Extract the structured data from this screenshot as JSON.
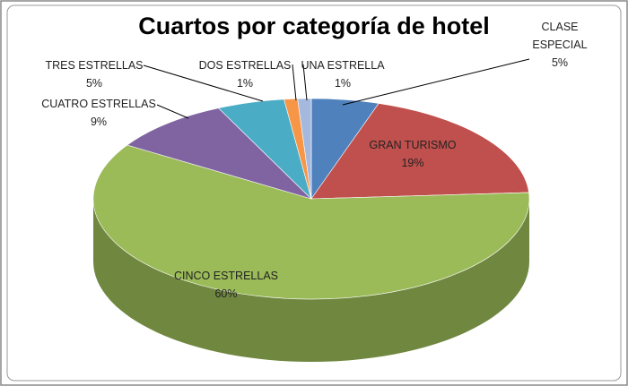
{
  "chart_data": {
    "type": "pie3d",
    "title": "Cuartos por categoría de hotel",
    "categories": [
      "CLASE ESPECIAL",
      "GRAN TURISMO",
      "CINCO ESTRELLAS",
      "CUATRO ESTRELLAS",
      "TRES ESTRELLAS",
      "DOS ESTRELLAS",
      "UNA ESTRELLA"
    ],
    "values": [
      5,
      19,
      60,
      9,
      5,
      1,
      1
    ],
    "value_labels": [
      "5%",
      "19%",
      "60%",
      "9%",
      "5%",
      "1%",
      "1%"
    ],
    "colors": [
      "#4f81bd",
      "#c0504d",
      "#9bbb59",
      "#8064a2",
      "#4bacc6",
      "#f79646",
      "#a5b8de"
    ]
  }
}
